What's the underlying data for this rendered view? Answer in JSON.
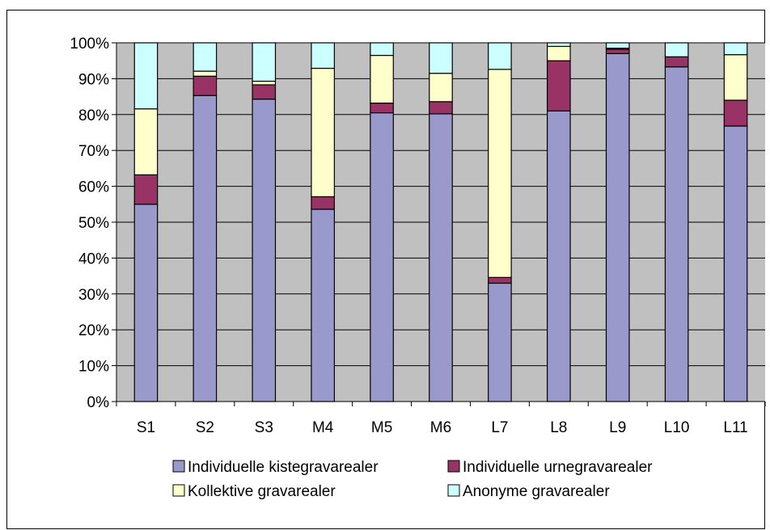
{
  "caption": "",
  "chart_data": {
    "type": "bar",
    "stacked": true,
    "normalized": true,
    "title": "",
    "xlabel": "",
    "ylabel": "",
    "ylim": [
      0,
      100
    ],
    "y_ticks": [
      "0%",
      "10%",
      "20%",
      "30%",
      "40%",
      "50%",
      "60%",
      "70%",
      "80%",
      "90%",
      "100%"
    ],
    "categories": [
      "S1",
      "S2",
      "S3",
      "M4",
      "M5",
      "M6",
      "L7",
      "L8",
      "L9",
      "L10",
      "L11"
    ],
    "series": [
      {
        "name": "Individuelle kistegravarealer",
        "color": "#9999cc",
        "values": [
          55,
          85.3,
          84.3,
          53.6,
          80.5,
          80.2,
          33,
          81,
          97,
          93.3,
          76.8
        ]
      },
      {
        "name": "Individuelle urnegravarealer",
        "color": "#993366",
        "values": [
          8.2,
          5.4,
          4,
          3.5,
          2.7,
          3.4,
          1.6,
          14,
          1.2,
          2.8,
          7.2
        ]
      },
      {
        "name": "Kollektive gravarealer",
        "color": "#ffffcc",
        "values": [
          18.4,
          1.4,
          1,
          35.8,
          13.3,
          7.9,
          58,
          4,
          0.3,
          0,
          12.7
        ]
      },
      {
        "name": "Anonyme gravarealer",
        "color": "#ccffff",
        "values": [
          18.4,
          7.9,
          10.7,
          7.1,
          3.5,
          8.5,
          7.4,
          1,
          1.5,
          3.9,
          3.3
        ]
      }
    ],
    "plot_background": "#c0c0c0",
    "grid": true,
    "legend_position": "bottom"
  }
}
